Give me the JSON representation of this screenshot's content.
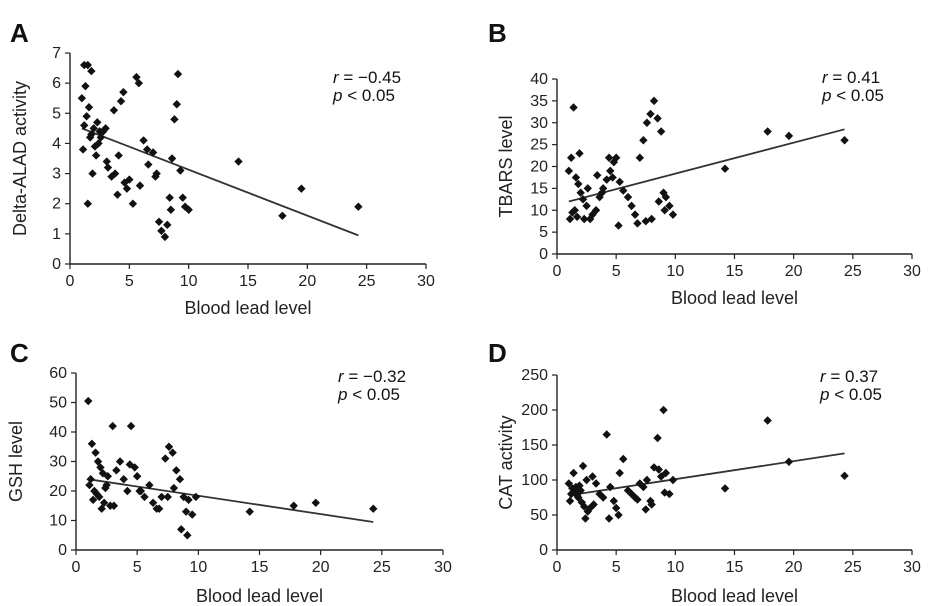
{
  "chart_data": [
    {
      "panel": "A",
      "type": "scatter",
      "xlabel": "Blood lead level",
      "ylabel": "Delta-ALAD activity",
      "xlim": [
        0,
        30
      ],
      "ylim": [
        0,
        7
      ],
      "xticks": [
        0,
        5,
        10,
        15,
        20,
        25,
        30
      ],
      "yticks": [
        0,
        1,
        2,
        3,
        4,
        5,
        6,
        7
      ],
      "annotation": {
        "r_symbol": "r",
        "r_value": "= −0.45",
        "p_symbol": "p",
        "p_value": "< 0.05"
      },
      "trend": {
        "x": [
          1,
          24.3
        ],
        "y": [
          4.5,
          0.95
        ]
      },
      "points": {
        "x": [
          1.2,
          1.5,
          1.8,
          1.3,
          1.0,
          1.6,
          1.4,
          1.2,
          2.0,
          2.5,
          2.3,
          1.7,
          1.1,
          2.2,
          1.9,
          1.5,
          2.8,
          3.0,
          3.2,
          3.8,
          4.1,
          4.3,
          4.5,
          2.6,
          2.1,
          3.5,
          3.7,
          4.0,
          4.8,
          5.0,
          5.3,
          5.6,
          5.8,
          6.2,
          6.5,
          7.0,
          7.2,
          7.5,
          7.7,
          8.0,
          8.2,
          8.4,
          8.6,
          8.8,
          9.0,
          9.3,
          9.5,
          9.7,
          10.0,
          5.9,
          6.6,
          7.3,
          8.5,
          9.1,
          1.8,
          2.4,
          3.1,
          4.6,
          14.2,
          19.5,
          17.9,
          24.3
        ],
        "y": [
          6.6,
          6.6,
          6.4,
          5.9,
          5.5,
          5.2,
          4.9,
          4.6,
          4.5,
          4.4,
          4.7,
          4.2,
          3.8,
          3.6,
          3.0,
          2.0,
          4.4,
          4.5,
          3.2,
          3.0,
          3.6,
          5.4,
          5.7,
          4.2,
          3.9,
          2.9,
          5.1,
          2.3,
          2.5,
          2.8,
          2.0,
          6.2,
          6.0,
          4.1,
          3.8,
          3.7,
          2.9,
          1.4,
          1.1,
          0.9,
          1.3,
          2.2,
          3.5,
          4.8,
          5.3,
          3.1,
          2.2,
          1.9,
          1.8,
          2.6,
          3.3,
          3.0,
          1.8,
          6.3,
          4.3,
          4.0,
          3.4,
          2.7,
          3.4,
          2.5,
          1.6,
          1.9
        ]
      }
    },
    {
      "panel": "B",
      "type": "scatter",
      "xlabel": "Blood lead level",
      "ylabel": "TBARS level",
      "xlim": [
        0,
        30
      ],
      "ylim": [
        0,
        40
      ],
      "xticks": [
        0,
        5,
        10,
        15,
        20,
        25,
        30
      ],
      "yticks": [
        0,
        5,
        10,
        15,
        20,
        25,
        30,
        35,
        40
      ],
      "annotation": {
        "r_symbol": "r",
        "r_value": "= 0.41",
        "p_symbol": "p",
        "p_value": "< 0.05"
      },
      "trend": {
        "x": [
          1,
          24.3
        ],
        "y": [
          12.0,
          28.5
        ]
      },
      "points": {
        "x": [
          1.4,
          1.2,
          1.0,
          1.6,
          1.8,
          2.0,
          2.2,
          2.5,
          1.3,
          1.7,
          2.8,
          3.0,
          3.3,
          3.6,
          3.9,
          4.2,
          4.5,
          4.8,
          5.0,
          5.3,
          5.6,
          6.0,
          6.3,
          6.6,
          7.0,
          7.3,
          7.6,
          7.9,
          8.2,
          8.5,
          8.8,
          9.0,
          9.2,
          9.5,
          9.8,
          1.1,
          1.5,
          2.3,
          3.8,
          4.4,
          5.2,
          6.8,
          7.5,
          8.0,
          8.6,
          9.1,
          1.9,
          2.6,
          3.4,
          4.7,
          14.2,
          17.8,
          19.6,
          24.3
        ],
        "y": [
          33.5,
          22.0,
          19.0,
          17.5,
          16.0,
          14.0,
          12.5,
          11.0,
          9.5,
          8.5,
          8.0,
          9.0,
          10.0,
          13.0,
          15.0,
          17.0,
          19.0,
          21.0,
          22.0,
          16.5,
          14.5,
          13.0,
          11.0,
          9.0,
          22.0,
          26.0,
          30.0,
          32.0,
          35.0,
          31.0,
          28.0,
          14.0,
          13.0,
          11.0,
          9.0,
          8.0,
          10.0,
          8.0,
          14.0,
          22.0,
          6.5,
          7.0,
          7.5,
          8.0,
          12.0,
          10.0,
          23.0,
          15.0,
          18.0,
          17.5,
          19.5,
          28.0,
          27.0,
          26.0
        ]
      }
    },
    {
      "panel": "C",
      "type": "scatter",
      "xlabel": "Blood lead level",
      "ylabel": "GSH level",
      "xlim": [
        0,
        30
      ],
      "ylim": [
        0,
        60
      ],
      "xticks": [
        0,
        5,
        10,
        15,
        20,
        25,
        30
      ],
      "yticks": [
        0,
        10,
        20,
        30,
        40,
        50,
        60
      ],
      "annotation": {
        "r_symbol": "r",
        "r_value": "= −0.32",
        "p_symbol": "p",
        "p_value": "< 0.05"
      },
      "trend": {
        "x": [
          1,
          24.3
        ],
        "y": [
          24.0,
          9.5
        ]
      },
      "points": {
        "x": [
          1.0,
          1.3,
          1.6,
          1.8,
          2.0,
          2.2,
          2.5,
          1.2,
          1.5,
          1.9,
          2.3,
          2.8,
          3.0,
          3.3,
          3.6,
          3.9,
          4.2,
          4.5,
          4.8,
          5.0,
          5.3,
          5.6,
          6.0,
          6.3,
          6.6,
          7.0,
          7.3,
          7.6,
          7.9,
          8.2,
          8.5,
          8.8,
          9.0,
          9.2,
          9.5,
          9.8,
          1.1,
          1.4,
          2.1,
          2.6,
          3.1,
          4.4,
          5.2,
          6.8,
          7.5,
          8.0,
          8.6,
          9.1,
          1.7,
          2.4,
          14.2,
          17.8,
          19.6,
          24.3
        ],
        "y": [
          50.5,
          36.0,
          33.0,
          30.0,
          28.0,
          26.0,
          22.0,
          24.0,
          20.0,
          18.0,
          16.0,
          15.0,
          42.0,
          27.0,
          30.0,
          24.0,
          20.0,
          42.0,
          28.0,
          25.0,
          20.0,
          18.0,
          22.0,
          16.0,
          14.0,
          18.0,
          31.0,
          35.0,
          33.0,
          27.0,
          24.0,
          18.0,
          13.0,
          17.0,
          12.0,
          18.0,
          22.0,
          17.0,
          14.0,
          25.0,
          15.0,
          29.0,
          20.0,
          14.0,
          18.0,
          21.0,
          7.0,
          5.0,
          19.0,
          21.0,
          13.0,
          15.0,
          16.0,
          14.0
        ]
      }
    },
    {
      "panel": "D",
      "type": "scatter",
      "xlabel": "Blood lead level",
      "ylabel": "CAT activity",
      "xlim": [
        0,
        30
      ],
      "ylim": [
        0,
        250
      ],
      "xticks": [
        0,
        5,
        10,
        15,
        20,
        25,
        30
      ],
      "yticks": [
        0,
        50,
        100,
        150,
        200,
        250
      ],
      "annotation": {
        "r_symbol": "r",
        "r_value": "= 0.37",
        "p_symbol": "p",
        "p_value": "< 0.05"
      },
      "trend": {
        "x": [
          1,
          24.3
        ],
        "y": [
          78.0,
          138.0
        ]
      },
      "points": {
        "x": [
          1.0,
          1.2,
          1.4,
          1.6,
          1.8,
          2.0,
          2.2,
          2.5,
          1.1,
          1.3,
          1.5,
          1.7,
          1.9,
          2.1,
          2.4,
          2.8,
          3.0,
          3.3,
          3.6,
          3.9,
          4.2,
          4.5,
          4.8,
          5.0,
          5.3,
          5.6,
          6.0,
          6.3,
          6.6,
          7.0,
          7.3,
          7.6,
          7.9,
          8.2,
          8.5,
          8.8,
          9.0,
          9.2,
          9.5,
          9.8,
          2.3,
          2.6,
          3.1,
          4.4,
          5.2,
          6.8,
          7.5,
          8.0,
          8.6,
          9.1,
          14.2,
          17.8,
          19.6,
          24.3
        ],
        "y": [
          95,
          80,
          110,
          90,
          75,
          85,
          120,
          100,
          70,
          88,
          82,
          78,
          92,
          68,
          45,
          60,
          105,
          95,
          80,
          75,
          165,
          90,
          70,
          60,
          110,
          130,
          85,
          80,
          75,
          95,
          90,
          100,
          70,
          118,
          160,
          105,
          200,
          110,
          80,
          100,
          62,
          55,
          65,
          45,
          50,
          72,
          58,
          65,
          115,
          82,
          88,
          185,
          126,
          106
        ]
      }
    }
  ]
}
